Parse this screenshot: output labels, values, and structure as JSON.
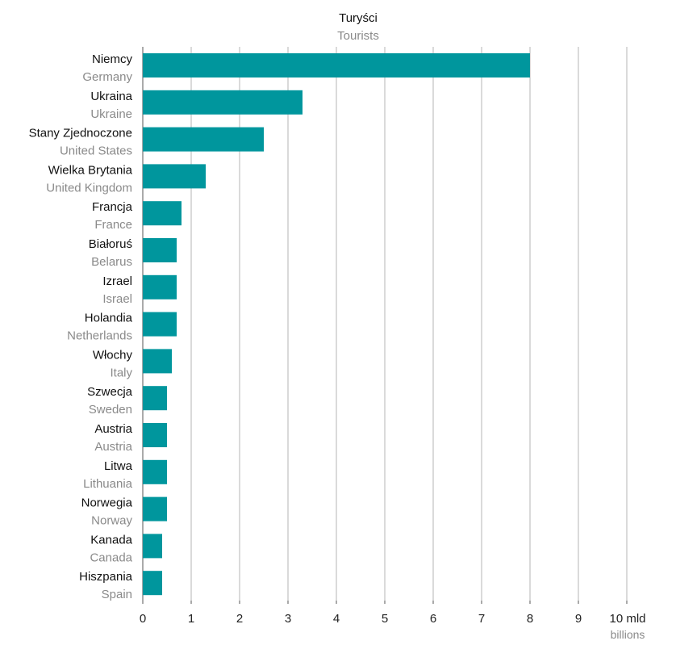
{
  "chart_data": {
    "type": "bar",
    "orientation": "horizontal",
    "title": "Turyści",
    "subtitle": "Tourists",
    "categories": [
      {
        "pl": "Niemcy",
        "en": "Germany"
      },
      {
        "pl": "Ukraina",
        "en": "Ukraine"
      },
      {
        "pl": "Stany Zjednoczone",
        "en": "United States"
      },
      {
        "pl": "Wielka Brytania",
        "en": "United Kingdom"
      },
      {
        "pl": "Francja",
        "en": "France"
      },
      {
        "pl": "Białoruś",
        "en": "Belarus"
      },
      {
        "pl": "Izrael",
        "en": "Israel"
      },
      {
        "pl": "Holandia",
        "en": "Netherlands"
      },
      {
        "pl": "Włochy",
        "en": "Italy"
      },
      {
        "pl": "Szwecja",
        "en": "Sweden"
      },
      {
        "pl": "Austria",
        "en": "Austria"
      },
      {
        "pl": "Litwa",
        "en": "Lithuania"
      },
      {
        "pl": "Norwegia",
        "en": "Norway"
      },
      {
        "pl": "Kanada",
        "en": "Canada"
      },
      {
        "pl": "Hiszpania",
        "en": "Spain"
      }
    ],
    "values": [
      8.0,
      3.3,
      2.5,
      1.3,
      0.8,
      0.7,
      0.7,
      0.7,
      0.6,
      0.5,
      0.5,
      0.5,
      0.5,
      0.4,
      0.4
    ],
    "xlim": [
      0,
      10
    ],
    "xticks": [
      "0",
      "1",
      "2",
      "3",
      "4",
      "5",
      "6",
      "7",
      "8",
      "9",
      "10 mld"
    ],
    "xunit_en": "billions",
    "grid": true,
    "bar_color": "#00969d"
  }
}
